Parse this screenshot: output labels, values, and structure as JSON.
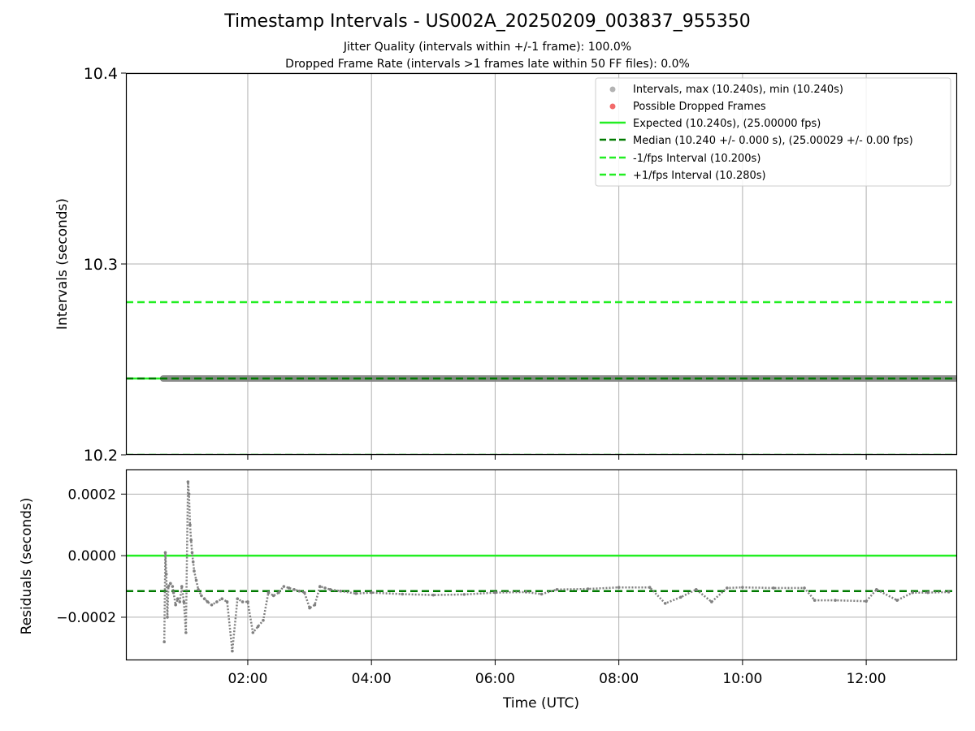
{
  "title": "Timestamp Intervals - US002A_20250209_003837_955350",
  "subtitle_1": "Jitter Quality (intervals within +/-1 frame): 100.0%",
  "subtitle_2": "Dropped Frame Rate (intervals >1 frames late within 50 FF files): 0.0%",
  "colors": {
    "points": "#808080",
    "dropped": "#f05050",
    "expected": "#22ee22",
    "median": "#007a00",
    "bounds": "#22ee22",
    "grid": "#b0b0b0"
  },
  "chart_data": [
    {
      "type": "scatter",
      "panel": "intervals",
      "ylabel": "Intervals (seconds)",
      "ylim": [
        10.2,
        10.4
      ],
      "yticks": [
        10.2,
        10.3,
        10.4
      ],
      "ytick_labels": [
        "10.2",
        "10.3",
        "10.4"
      ],
      "xlim_hours": [
        0.03,
        13.47
      ],
      "grid": true,
      "legend_position": "top-right",
      "legend": [
        "Intervals, max (10.240s), min (10.240s)",
        "Possible Dropped Frames",
        "Expected (10.240s), (25.00000 fps)",
        "Median (10.240 +/- 0.000 s), (25.00029 +/- 0.00 fps)",
        "-1/fps Interval (10.200s)",
        "+1/fps Interval (10.280s)"
      ],
      "lines": {
        "expected": 10.24,
        "median": 10.24,
        "minus_one_fps": 10.2,
        "plus_one_fps": 10.28
      },
      "series": [
        {
          "name": "Intervals, max (10.240s), min (10.240s)",
          "x_start": "00:38",
          "x_end": "13:27",
          "value": 10.24
        },
        {
          "name": "Possible Dropped Frames",
          "values": []
        }
      ]
    },
    {
      "type": "scatter",
      "panel": "residuals",
      "xlabel": "Time (UTC)",
      "ylabel": "Residuals (seconds)",
      "ylim": [
        -0.00034,
        0.00028
      ],
      "yticks": [
        -0.0002,
        0.0,
        0.0002
      ],
      "ytick_labels": [
        "−0.0002",
        "0.0000",
        "0.0002"
      ],
      "xticks": [
        "02:00",
        "04:00",
        "06:00",
        "08:00",
        "10:00",
        "12:00"
      ],
      "xlim_hours": [
        0.03,
        13.47
      ],
      "grid": true,
      "lines": {
        "zero": 0.0,
        "median": -0.000115
      },
      "series": [
        {
          "name": "residuals",
          "x": [
            "00:39",
            "00:40",
            "00:41",
            "00:42",
            "00:43",
            "00:45",
            "00:47",
            "00:48",
            "00:50",
            "00:52",
            "00:54",
            "00:56",
            "00:58",
            "01:00",
            "01:02",
            "01:03",
            "01:04",
            "01:05",
            "01:06",
            "01:07",
            "01:08",
            "01:10",
            "01:12",
            "01:15",
            "01:18",
            "01:21",
            "01:25",
            "01:30",
            "01:35",
            "01:40",
            "01:45",
            "01:50",
            "01:55",
            "02:00",
            "02:05",
            "02:10",
            "02:15",
            "02:20",
            "02:25",
            "02:30",
            "02:35",
            "02:40",
            "02:45",
            "02:50",
            "02:55",
            "03:00",
            "03:05",
            "03:10",
            "03:15",
            "03:20",
            "03:30",
            "03:45",
            "04:00",
            "04:30",
            "05:00",
            "05:30",
            "06:00",
            "06:30",
            "06:45",
            "07:00",
            "07:30",
            "08:00",
            "08:30",
            "08:45",
            "09:00",
            "09:15",
            "09:30",
            "09:45",
            "10:00",
            "10:30",
            "11:00",
            "11:10",
            "11:30",
            "12:00",
            "12:10",
            "12:30",
            "12:45",
            "13:00",
            "13:20"
          ],
          "values": [
            -0.00028,
            1e-05,
            -6e-05,
            -0.0002,
            -0.0001,
            -9e-05,
            -0.0001,
            -0.00012,
            -0.00016,
            -0.00014,
            -0.00015,
            -0.0001,
            -0.00015,
            -0.00025,
            0.00024,
            0.0002,
            0.0001,
            5e-05,
            1e-05,
            -2e-05,
            -5e-05,
            -8e-05,
            -0.00011,
            -0.00013,
            -0.00014,
            -0.00015,
            -0.00016,
            -0.00015,
            -0.00014,
            -0.00015,
            -0.00031,
            -0.00014,
            -0.00015,
            -0.00015,
            -0.00025,
            -0.00023,
            -0.00021,
            -0.00012,
            -0.00013,
            -0.00012,
            -0.0001,
            -0.000105,
            -0.00011,
            -0.000115,
            -0.00012,
            -0.00017,
            -0.00016,
            -0.0001,
            -0.000105,
            -0.00011,
            -0.000115,
            -0.000123,
            -0.00012,
            -0.000125,
            -0.000128,
            -0.000126,
            -0.00012,
            -0.000118,
            -0.000125,
            -0.00011,
            -0.000108,
            -0.000103,
            -0.000103,
            -0.000155,
            -0.000135,
            -0.00011,
            -0.00015,
            -0.000105,
            -0.000103,
            -0.000105,
            -0.000105,
            -0.000145,
            -0.000145,
            -0.000148,
            -0.00011,
            -0.000145,
            -0.00012,
            -0.00012,
            -0.000118
          ]
        }
      ]
    }
  ]
}
